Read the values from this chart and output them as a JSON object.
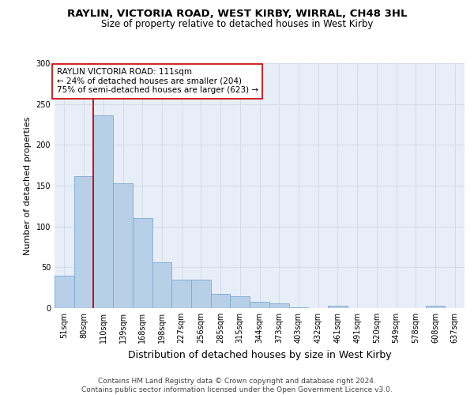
{
  "title1": "RAYLIN, VICTORIA ROAD, WEST KIRBY, WIRRAL, CH48 3HL",
  "title2": "Size of property relative to detached houses in West Kirby",
  "xlabel": "Distribution of detached houses by size in West Kirby",
  "ylabel": "Number of detached properties",
  "bar_labels": [
    "51sqm",
    "80sqm",
    "110sqm",
    "139sqm",
    "168sqm",
    "198sqm",
    "227sqm",
    "256sqm",
    "285sqm",
    "315sqm",
    "344sqm",
    "373sqm",
    "403sqm",
    "432sqm",
    "461sqm",
    "491sqm",
    "520sqm",
    "549sqm",
    "578sqm",
    "608sqm",
    "637sqm"
  ],
  "bar_values": [
    40,
    162,
    236,
    153,
    110,
    56,
    35,
    35,
    17,
    15,
    8,
    6,
    1,
    0,
    3,
    0,
    0,
    0,
    0,
    3,
    0
  ],
  "bar_color": "#b8cfe8",
  "bar_edge_color": "#7aaad0",
  "vline_x_index": 2,
  "vline_color": "#cc0000",
  "annotation_text": "RAYLIN VICTORIA ROAD: 111sqm\n← 24% of detached houses are smaller (204)\n75% of semi-detached houses are larger (623) →",
  "annotation_box_color": "#ffffff",
  "annotation_box_edge": "#cc0000",
  "ylim": [
    0,
    300
  ],
  "yticks": [
    0,
    50,
    100,
    150,
    200,
    250,
    300
  ],
  "grid_color": "#d0d8e8",
  "background_color": "#e8eef8",
  "footer_text": "Contains HM Land Registry data © Crown copyright and database right 2024.\nContains public sector information licensed under the Open Government Licence v3.0.",
  "title1_fontsize": 9.5,
  "title2_fontsize": 8.5,
  "xlabel_fontsize": 9,
  "ylabel_fontsize": 8,
  "tick_fontsize": 7,
  "annotation_fontsize": 7.5,
  "footer_fontsize": 6.5
}
